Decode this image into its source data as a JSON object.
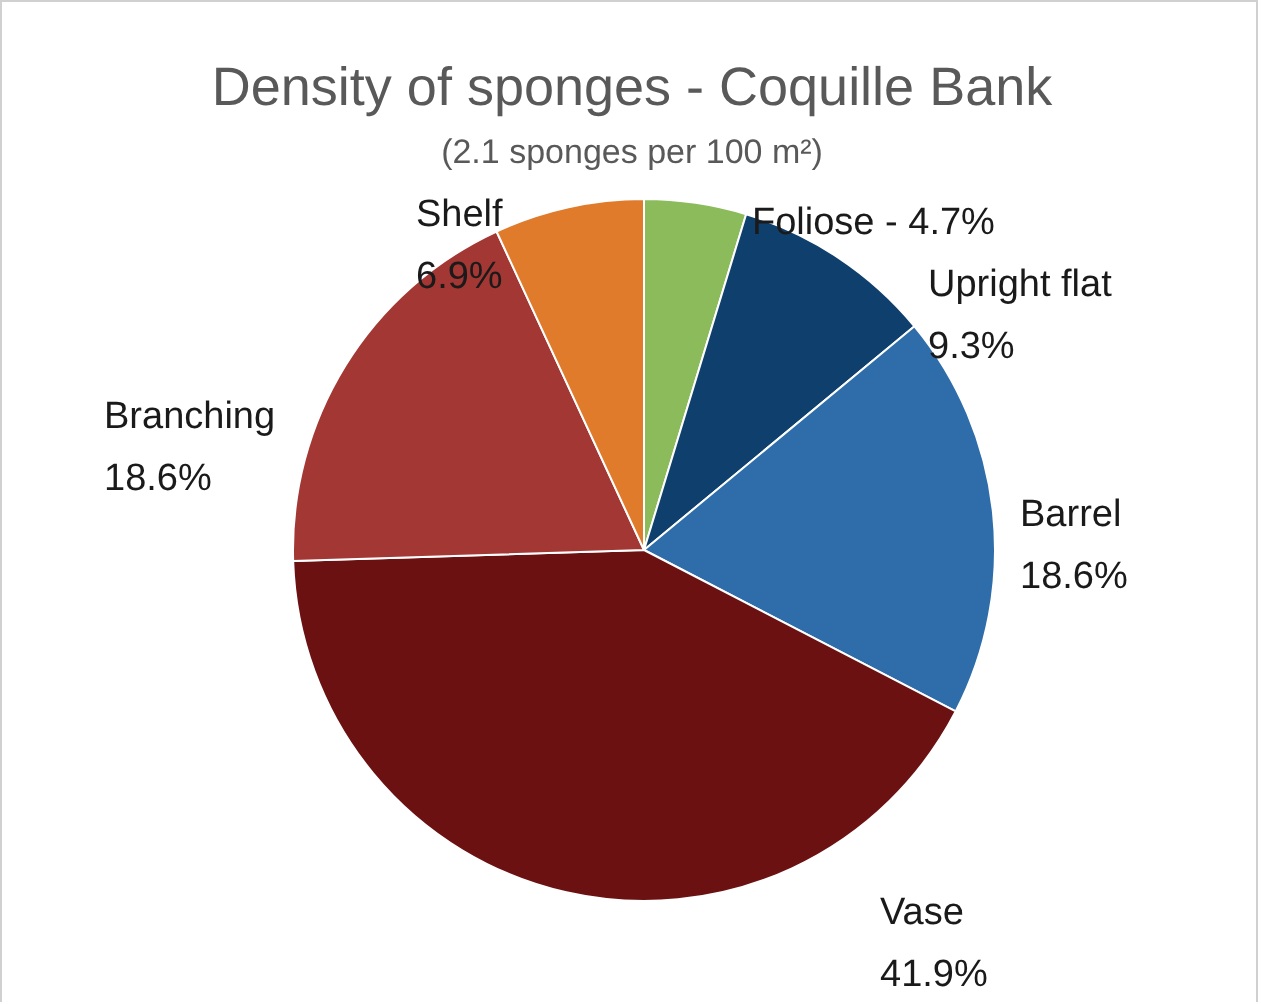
{
  "chart_data": {
    "type": "pie",
    "title": "Density of sponges - Coquille Bank",
    "subtitle": "(2.1 sponges per 100 m²)",
    "categories": [
      "Foliose -",
      "Upright flat",
      "Barrel",
      "Vase",
      "Branching",
      "Shelf"
    ],
    "value_labels": [
      "4.7%",
      "9.3%",
      "18.6%",
      "41.9%",
      "18.6%",
      "6.9%"
    ],
    "values": [
      4.7,
      9.3,
      18.6,
      41.9,
      18.6,
      6.9
    ],
    "colors": [
      "#8cbb5b",
      "#0f3f6d",
      "#2e6da9",
      "#6b1111",
      "#a33733",
      "#df7b2b"
    ],
    "legend": false
  }
}
